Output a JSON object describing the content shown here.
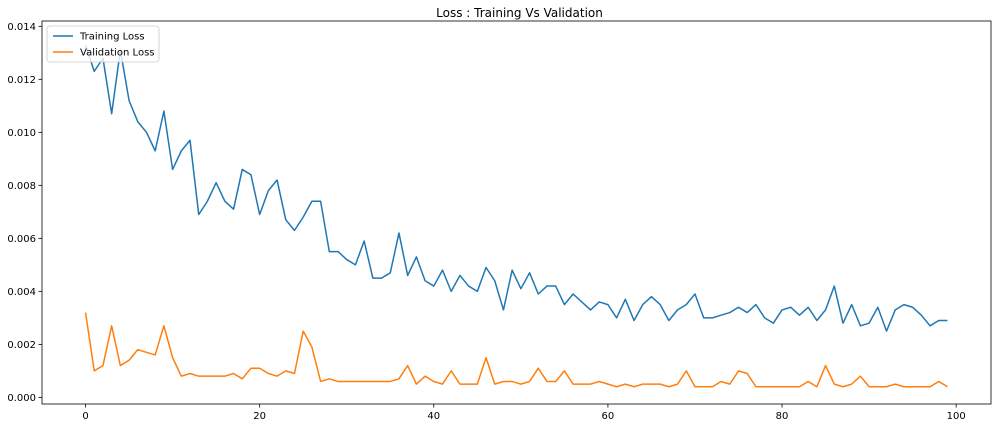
{
  "chart_data": {
    "type": "line",
    "title": "Loss : Training Vs Validation",
    "xlabel": "",
    "ylabel": "",
    "xlim": [
      -5,
      104
    ],
    "ylim": [
      -0.00025,
      0.0142
    ],
    "xticks": [
      0,
      20,
      40,
      60,
      80,
      100
    ],
    "yticks": [
      0.0,
      0.002,
      0.004,
      0.006,
      0.008,
      0.01,
      0.012,
      0.014
    ],
    "xtick_labels": [
      "0",
      "20",
      "40",
      "60",
      "80",
      "100"
    ],
    "ytick_labels": [
      "0.000",
      "0.002",
      "0.004",
      "0.006",
      "0.008",
      "0.010",
      "0.012",
      "0.014"
    ],
    "grid": false,
    "legend_position": "top-left",
    "series": [
      {
        "name": "Training Loss",
        "color": "#1f77b4",
        "x": [
          0,
          1,
          2,
          3,
          4,
          5,
          6,
          7,
          8,
          9,
          10,
          11,
          12,
          13,
          14,
          15,
          16,
          17,
          18,
          19,
          20,
          21,
          22,
          23,
          24,
          25,
          26,
          27,
          28,
          29,
          30,
          31,
          32,
          33,
          34,
          35,
          36,
          37,
          38,
          39,
          40,
          41,
          42,
          43,
          44,
          45,
          46,
          47,
          48,
          49,
          50,
          51,
          52,
          53,
          54,
          55,
          56,
          57,
          58,
          59,
          60,
          61,
          62,
          63,
          64,
          65,
          66,
          67,
          68,
          69,
          70,
          71,
          72,
          73,
          74,
          75,
          76,
          77,
          78,
          79,
          80,
          81,
          82,
          83,
          84,
          85,
          86,
          87,
          88,
          89,
          90,
          91,
          92,
          93,
          94,
          95,
          96,
          97,
          98,
          99
        ],
        "values": [
          0.0133,
          0.0123,
          0.0128,
          0.0107,
          0.0131,
          0.0112,
          0.0104,
          0.01,
          0.0093,
          0.0108,
          0.0086,
          0.0093,
          0.0097,
          0.0069,
          0.0074,
          0.0081,
          0.0074,
          0.0071,
          0.0086,
          0.0084,
          0.0069,
          0.0078,
          0.0082,
          0.0067,
          0.0063,
          0.0068,
          0.0074,
          0.0074,
          0.0055,
          0.0055,
          0.0052,
          0.005,
          0.0059,
          0.0045,
          0.0045,
          0.0047,
          0.0062,
          0.0046,
          0.0053,
          0.0044,
          0.0042,
          0.0048,
          0.004,
          0.0046,
          0.0042,
          0.004,
          0.0049,
          0.0044,
          0.0033,
          0.0048,
          0.0041,
          0.0047,
          0.0039,
          0.0042,
          0.0042,
          0.0035,
          0.0039,
          0.0036,
          0.0033,
          0.0036,
          0.0035,
          0.003,
          0.0037,
          0.0029,
          0.0035,
          0.0038,
          0.0035,
          0.0029,
          0.0033,
          0.0035,
          0.0039,
          0.003,
          0.003,
          0.0031,
          0.0032,
          0.0034,
          0.0032,
          0.0035,
          0.003,
          0.0028,
          0.0033,
          0.0034,
          0.0031,
          0.0034,
          0.0029,
          0.0033,
          0.0042,
          0.0028,
          0.0035,
          0.0027,
          0.0028,
          0.0034,
          0.0025,
          0.0033,
          0.0035,
          0.0034,
          0.0031,
          0.0027,
          0.0029,
          0.0029
        ]
      },
      {
        "name": "Validation Loss",
        "color": "#ff7f0e",
        "x": [
          0,
          1,
          2,
          3,
          4,
          5,
          6,
          7,
          8,
          9,
          10,
          11,
          12,
          13,
          14,
          15,
          16,
          17,
          18,
          19,
          20,
          21,
          22,
          23,
          24,
          25,
          26,
          27,
          28,
          29,
          30,
          31,
          32,
          33,
          34,
          35,
          36,
          37,
          38,
          39,
          40,
          41,
          42,
          43,
          44,
          45,
          46,
          47,
          48,
          49,
          50,
          51,
          52,
          53,
          54,
          55,
          56,
          57,
          58,
          59,
          60,
          61,
          62,
          63,
          64,
          65,
          66,
          67,
          68,
          69,
          70,
          71,
          72,
          73,
          74,
          75,
          76,
          77,
          78,
          79,
          80,
          81,
          82,
          83,
          84,
          85,
          86,
          87,
          88,
          89,
          90,
          91,
          92,
          93,
          94,
          95,
          96,
          97,
          98,
          99
        ],
        "values": [
          0.0032,
          0.001,
          0.0012,
          0.0027,
          0.0012,
          0.0014,
          0.0018,
          0.0017,
          0.0016,
          0.0027,
          0.0015,
          0.0008,
          0.0009,
          0.0008,
          0.0008,
          0.0008,
          0.0008,
          0.0009,
          0.0007,
          0.0011,
          0.0011,
          0.0009,
          0.0008,
          0.001,
          0.0009,
          0.0025,
          0.0019,
          0.0006,
          0.0007,
          0.0006,
          0.0006,
          0.0006,
          0.0006,
          0.0006,
          0.0006,
          0.0006,
          0.0007,
          0.0012,
          0.0005,
          0.0008,
          0.0006,
          0.0005,
          0.001,
          0.0005,
          0.0005,
          0.0005,
          0.0015,
          0.0005,
          0.0006,
          0.0006,
          0.0005,
          0.0006,
          0.0011,
          0.0006,
          0.0006,
          0.001,
          0.0005,
          0.0005,
          0.0005,
          0.0006,
          0.0005,
          0.0004,
          0.0005,
          0.0004,
          0.0005,
          0.0005,
          0.0005,
          0.0004,
          0.0005,
          0.001,
          0.0004,
          0.0004,
          0.0004,
          0.0006,
          0.0005,
          0.001,
          0.0009,
          0.0004,
          0.0004,
          0.0004,
          0.0004,
          0.0004,
          0.0004,
          0.0006,
          0.0004,
          0.0012,
          0.0005,
          0.0004,
          0.0005,
          0.0008,
          0.0004,
          0.0004,
          0.0004,
          0.0005,
          0.0004,
          0.0004,
          0.0004,
          0.0004,
          0.0006,
          0.0004
        ]
      }
    ]
  }
}
